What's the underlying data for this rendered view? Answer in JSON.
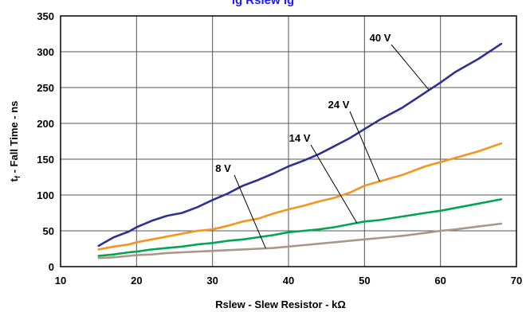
{
  "header_text": "ig        Rslew        ig",
  "chart_data": {
    "type": "line",
    "title": "",
    "xlabel": "Rslew - Slew Resistor - kΩ",
    "ylabel_main": " - Fall Time - ns",
    "ylabel_t": "t",
    "ylabel_sub": "f",
    "xlim": [
      10,
      70
    ],
    "ylim": [
      0,
      350
    ],
    "xticks": [
      10,
      20,
      30,
      40,
      50,
      60,
      70
    ],
    "yticks": [
      0,
      50,
      100,
      150,
      200,
      250,
      300,
      350
    ],
    "grid": true,
    "series": [
      {
        "name": "40 V",
        "color": "#2e3192",
        "x": [
          15,
          17,
          19,
          20,
          22,
          24,
          26,
          28,
          29,
          30,
          32,
          34,
          36,
          38,
          40,
          42,
          44,
          46,
          48,
          50,
          52,
          55,
          58,
          60,
          62,
          65,
          68
        ],
        "y": [
          29,
          41,
          49,
          55,
          64,
          71,
          75,
          83,
          88,
          93,
          102,
          113,
          121,
          130,
          140,
          148,
          157,
          168,
          179,
          192,
          205,
          222,
          243,
          257,
          272,
          290,
          311
        ]
      },
      {
        "name": "24 V",
        "color": "#f7941d",
        "x": [
          15,
          17,
          19,
          20,
          22,
          24,
          26,
          28,
          30,
          32,
          34,
          36,
          38,
          40,
          42,
          44,
          46,
          48,
          50,
          52,
          55,
          58,
          60,
          62,
          65,
          68
        ],
        "y": [
          24,
          28,
          31,
          34,
          38,
          42,
          46,
          50,
          52,
          57,
          63,
          67,
          74,
          80,
          85,
          91,
          96,
          103,
          113,
          119,
          128,
          140,
          146,
          152,
          161,
          172
        ]
      },
      {
        "name": "14 V",
        "color": "#00a651",
        "x": [
          15,
          17,
          19,
          20,
          22,
          24,
          26,
          28,
          30,
          32,
          34,
          36,
          38,
          40,
          42,
          44,
          46,
          48,
          50,
          52,
          55,
          58,
          60,
          62,
          65,
          68
        ],
        "y": [
          15,
          17,
          20,
          21,
          24,
          26,
          28,
          31,
          33,
          36,
          38,
          41,
          44,
          48,
          50,
          52,
          55,
          59,
          63,
          65,
          70,
          75,
          78,
          82,
          88,
          94
        ]
      },
      {
        "name": "8 V",
        "color": "#a99887",
        "x": [
          15,
          17,
          19,
          20,
          22,
          24,
          26,
          28,
          30,
          32,
          34,
          36,
          38,
          40,
          42,
          44,
          46,
          48,
          50,
          52,
          55,
          58,
          60,
          62,
          65,
          68
        ],
        "y": [
          12,
          13,
          15,
          16,
          17,
          19,
          20,
          21,
          22,
          23,
          24,
          25,
          26,
          28,
          30,
          32,
          34,
          36,
          38,
          40,
          43,
          47,
          50,
          52,
          56,
          60
        ]
      }
    ],
    "annotations": [
      {
        "text": "40 V",
        "series": "40 V",
        "at_x": 58.5
      },
      {
        "text": "24 V",
        "series": "24 V",
        "at_x": 52.0
      },
      {
        "text": "14 V",
        "series": "14 V",
        "at_x": 49.0
      },
      {
        "text": "8 V",
        "series": "8 V",
        "at_x": 37.0
      }
    ]
  }
}
